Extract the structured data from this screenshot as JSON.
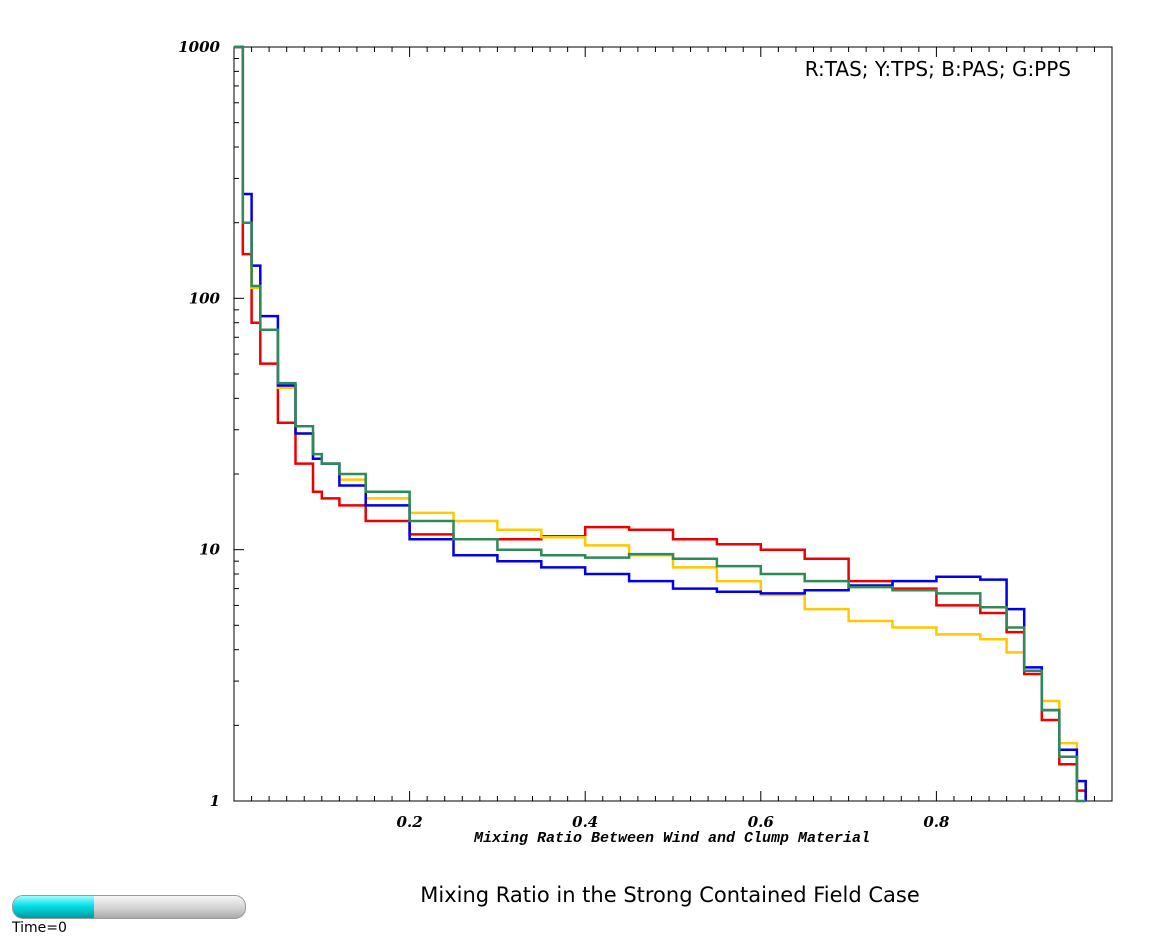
{
  "chart_data": {
    "type": "line",
    "step": true,
    "title": "Mixing Ratio in the Strong Contained Field Case",
    "xlabel": "Mixing Ratio Between Wind and Clump Material",
    "ylabel": "",
    "xlim": [
      0,
      1
    ],
    "ylim": [
      1,
      1000
    ],
    "yscale": "log",
    "xticks": [
      0.2,
      0.4,
      0.6,
      0.8
    ],
    "xtick_labels": [
      "0.2",
      "0.4",
      "0.6",
      "0.8"
    ],
    "yticks": [
      1,
      10,
      100,
      1000
    ],
    "ytick_labels": [
      "1",
      "10",
      "100",
      "1000"
    ],
    "legend_text": "R:TAS; Y:TPS; B:PAS; G:PPS",
    "legend_position": "top-right",
    "grid": false,
    "series": [
      {
        "key": "R",
        "color": "#ee0000",
        "x": [
          0,
          0.01,
          0.02,
          0.03,
          0.05,
          0.07,
          0.09,
          0.1,
          0.12,
          0.15,
          0.2,
          0.25,
          0.3,
          0.35,
          0.4,
          0.45,
          0.5,
          0.55,
          0.6,
          0.65,
          0.7,
          0.75,
          0.8,
          0.85,
          0.88,
          0.9,
          0.92,
          0.94,
          0.96
        ],
        "values": [
          1000,
          150,
          80,
          55,
          32,
          22,
          17,
          16,
          15,
          13,
          11.5,
          11,
          11,
          11.3,
          12.3,
          12,
          11,
          10.5,
          10,
          9.2,
          7.5,
          7,
          6,
          5.6,
          4.7,
          3.2,
          2.1,
          1.4,
          1.1
        ]
      },
      {
        "key": "Y",
        "color": "#ffc800",
        "x": [
          0,
          0.01,
          0.02,
          0.03,
          0.05,
          0.07,
          0.09,
          0.1,
          0.12,
          0.15,
          0.2,
          0.25,
          0.3,
          0.35,
          0.4,
          0.45,
          0.5,
          0.55,
          0.6,
          0.65,
          0.7,
          0.75,
          0.8,
          0.85,
          0.88,
          0.9,
          0.92,
          0.94,
          0.96
        ],
        "values": [
          1000,
          200,
          110,
          75,
          44,
          29,
          23,
          22,
          19,
          16,
          14,
          13,
          12,
          11.2,
          10.4,
          9.5,
          8.5,
          7.5,
          6.6,
          5.8,
          5.2,
          4.9,
          4.6,
          4.4,
          3.9,
          3.3,
          2.5,
          1.7,
          1.2
        ]
      },
      {
        "key": "B",
        "color": "#0000ee",
        "x": [
          0,
          0.01,
          0.02,
          0.03,
          0.05,
          0.07,
          0.09,
          0.1,
          0.12,
          0.15,
          0.2,
          0.25,
          0.3,
          0.35,
          0.4,
          0.45,
          0.5,
          0.55,
          0.6,
          0.65,
          0.7,
          0.75,
          0.8,
          0.85,
          0.88,
          0.9,
          0.92,
          0.94,
          0.96
        ],
        "values": [
          1000,
          260,
          135,
          85,
          45,
          29,
          23,
          22,
          18,
          15,
          11,
          9.5,
          9,
          8.5,
          8,
          7.5,
          7,
          6.8,
          6.7,
          6.9,
          7.2,
          7.5,
          7.8,
          7.6,
          5.8,
          3.4,
          2.3,
          1.6,
          1.2
        ]
      },
      {
        "key": "G",
        "color": "#2e8b57",
        "x": [
          0,
          0.01,
          0.02,
          0.03,
          0.05,
          0.07,
          0.09,
          0.1,
          0.12,
          0.15,
          0.2,
          0.25,
          0.3,
          0.35,
          0.4,
          0.45,
          0.5,
          0.55,
          0.6,
          0.65,
          0.7,
          0.75,
          0.8,
          0.85,
          0.88,
          0.9,
          0.92,
          0.94,
          0.96
        ],
        "values": [
          1000,
          200,
          112,
          75,
          46,
          31,
          24,
          22,
          20,
          17,
          13,
          11,
          10,
          9.5,
          9.3,
          9.6,
          9.2,
          8.6,
          8,
          7.5,
          7.1,
          6.9,
          6.7,
          5.9,
          4.9,
          3.3,
          2.3,
          1.5,
          1.0
        ]
      }
    ]
  },
  "time_slider": {
    "label": "Time=0",
    "fill_fraction": 0.35
  }
}
